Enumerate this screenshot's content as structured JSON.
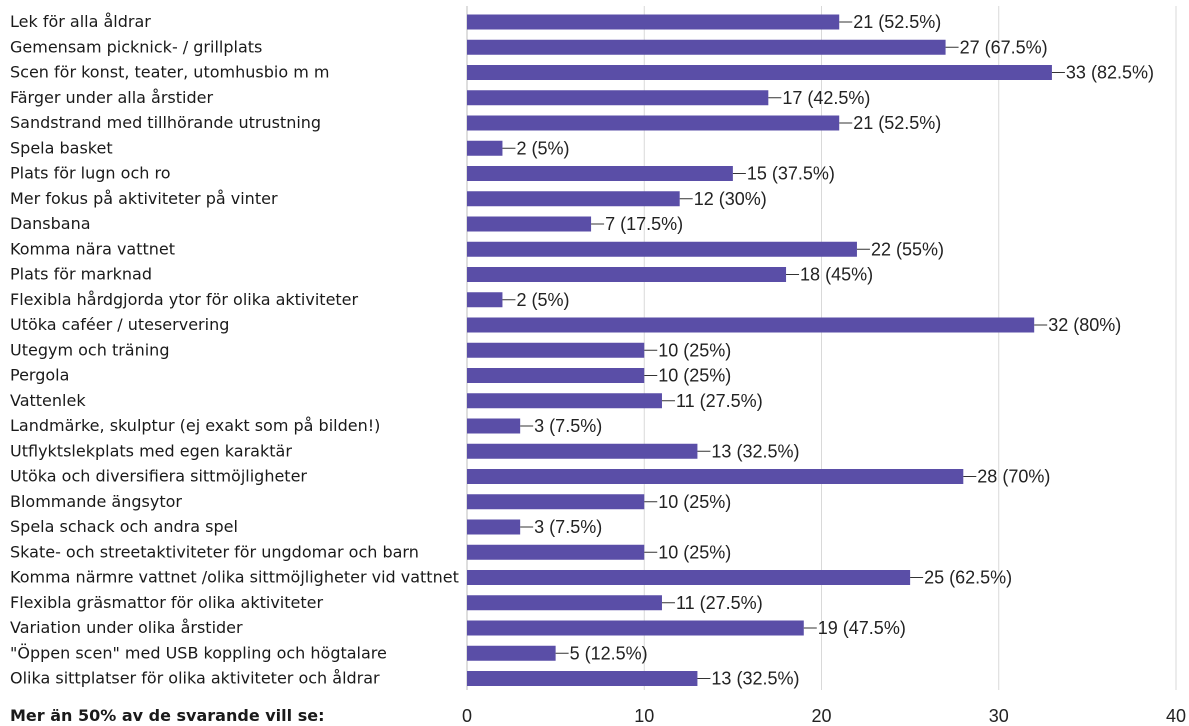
{
  "chart_data": {
    "type": "bar",
    "orientation": "horizontal",
    "categories": [
      "Lek för alla åldrar",
      "Gemensam picknick- / grillplats",
      "Scen för konst, teater, utomhusbio m m",
      "Färger under alla årstider",
      "Sandstrand med tillhörande utrustning",
      "Spela basket",
      "Plats för lugn och ro",
      "Mer fokus på aktiviteter på vinter",
      "Dansbana",
      "Komma nära vattnet",
      "Plats för marknad",
      "Flexibla hårdgjorda ytor för olika aktiviteter",
      "Utöka caféer / uteservering",
      "Utegym och träning",
      "Pergola",
      "Vattenlek",
      "Landmärke, skulptur (ej exakt som på bilden!)",
      "Utflyktslekplats med egen karaktär",
      "Utöka och diversifiera sittmöjligheter",
      "Blommande ängsytor",
      "Spela schack och andra spel",
      "Skate- och streetaktiviteter för ungdomar och barn",
      "Komma närmre vattnet /olika sittmöjligheter vid vattnet",
      "Flexibla gräsmattor för olika aktiviteter",
      "Variation under olika årstider",
      "\"Öppen scen\" med USB koppling och högtalare",
      "Olika sittplatser för olika aktiviteter och åldrar"
    ],
    "values": [
      21,
      27,
      33,
      17,
      21,
      2,
      15,
      12,
      7,
      22,
      18,
      2,
      32,
      10,
      10,
      11,
      3,
      13,
      28,
      10,
      3,
      10,
      25,
      11,
      19,
      5,
      13
    ],
    "data_labels": [
      "21 (52.5%)",
      "27 (67.5%)",
      "33 (82.5%)",
      "17 (42.5%)",
      "21 (52.5%)",
      "2 (5%)",
      "15 (37.5%)",
      "12 (30%)",
      "7 (17.5%)",
      "22 (55%)",
      "18 (45%)",
      "2 (5%)",
      "32 (80%)",
      "10 (25%)",
      "10 (25%)",
      "11 (27.5%)",
      "3 (7.5%)",
      "13 (32.5%)",
      "28 (70%)",
      "10 (25%)",
      "3 (7.5%)",
      "10 (25%)",
      "25 (62.5%)",
      "11 (27.5%)",
      "19 (47.5%)",
      "5 (12.5%)",
      "13 (32.5%)"
    ],
    "xlim": [
      0,
      40
    ],
    "xticks": [
      0,
      10,
      20,
      30,
      40
    ],
    "grid": true,
    "bar_color": "#5a4ea7",
    "grid_color": "#d9d9d9"
  },
  "footnote": "Mer än 50% av de svarande vill se:"
}
